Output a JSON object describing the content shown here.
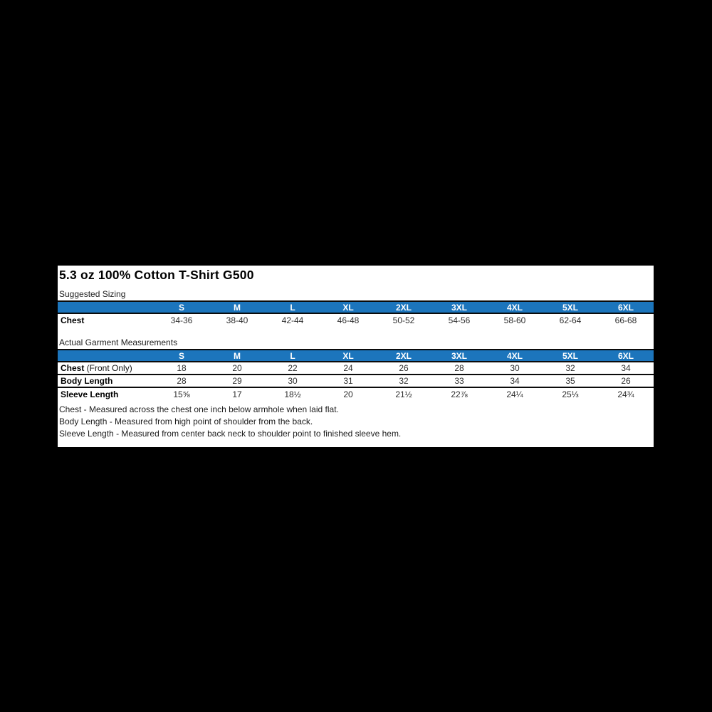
{
  "panel": {
    "title": "5.3 oz 100% Cotton T-Shirt G500",
    "colors": {
      "header_bg": "#1C75BC",
      "header_text": "#FFFFFF",
      "panel_bg": "#FFFFFF",
      "page_bg": "#000000",
      "border": "#0B0B0B"
    },
    "tables": [
      {
        "caption": "Suggested Sizing",
        "sizes": [
          "S",
          "M",
          "L",
          "XL",
          "2XL",
          "3XL",
          "4XL",
          "5XL",
          "6XL"
        ],
        "rows": [
          {
            "label": "Chest",
            "label_suffix": "",
            "values": [
              "34-36",
              "38-40",
              "42-44",
              "46-48",
              "50-52",
              "54-56",
              "58-60",
              "62-64",
              "66-68"
            ]
          }
        ]
      },
      {
        "caption": "Actual Garment Measurements",
        "sizes": [
          "S",
          "M",
          "L",
          "XL",
          "2XL",
          "3XL",
          "4XL",
          "5XL",
          "6XL"
        ],
        "rows": [
          {
            "label": "Chest",
            "label_suffix": " (Front Only)",
            "values": [
              "18",
              "20",
              "22",
              "24",
              "26",
              "28",
              "30",
              "32",
              "34"
            ]
          },
          {
            "label": "Body Length",
            "label_suffix": "",
            "values": [
              "28",
              "29",
              "30",
              "31",
              "32",
              "33",
              "34",
              "35",
              "26"
            ]
          },
          {
            "label": "Sleeve Length",
            "label_suffix": "",
            "values": [
              "15⅝",
              "17",
              "18½",
              "20",
              "21½",
              "22⅞",
              "24¼",
              "25⅓",
              "24¾"
            ]
          }
        ]
      }
    ],
    "notes": [
      "Chest - Measured across the chest one inch below armhole when laid flat.",
      "Body Length - Measured from high point of shoulder from the back.",
      "Sleeve Length - Measured from center back neck to shoulder point to finished sleeve hem."
    ]
  }
}
